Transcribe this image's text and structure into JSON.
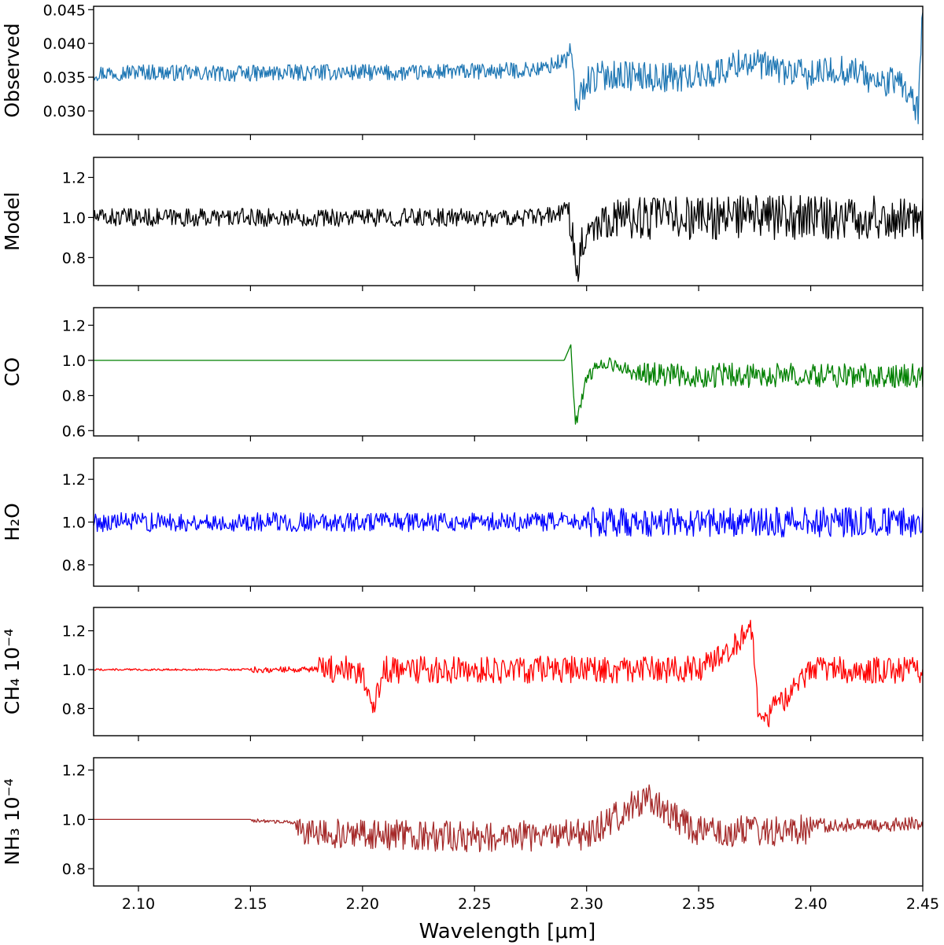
{
  "chart_data": {
    "xlabel": "Wavelength [μm]",
    "xlim": [
      2.08,
      2.45
    ],
    "xticks": [
      2.1,
      2.15,
      2.2,
      2.25,
      2.3,
      2.35,
      2.4,
      2.45
    ],
    "xtick_labels": [
      "2.10",
      "2.15",
      "2.20",
      "2.25",
      "2.30",
      "2.35",
      "2.40",
      "2.45"
    ],
    "panels": [
      {
        "type": "line",
        "key": "observed",
        "ylabel": "Observed",
        "color": "#1f77b4",
        "ylim": [
          0.0265,
          0.0455
        ],
        "yticks": [
          0.03,
          0.035,
          0.04,
          0.045
        ],
        "ytick_labels": [
          "0.030",
          "0.035",
          "0.040",
          "0.045"
        ],
        "x": [
          2.08,
          2.1,
          2.12,
          2.14,
          2.16,
          2.18,
          2.2,
          2.22,
          2.24,
          2.26,
          2.28,
          2.29,
          2.293,
          2.295,
          2.3,
          2.31,
          2.32,
          2.33,
          2.34,
          2.35,
          2.36,
          2.37,
          2.38,
          2.39,
          2.4,
          2.41,
          2.42,
          2.43,
          2.44,
          2.448,
          2.45
        ],
        "y": [
          0.0356,
          0.0358,
          0.0356,
          0.0355,
          0.0356,
          0.0357,
          0.0357,
          0.0356,
          0.0358,
          0.0359,
          0.0362,
          0.0375,
          0.039,
          0.0305,
          0.0345,
          0.0355,
          0.0352,
          0.035,
          0.035,
          0.0352,
          0.0358,
          0.0375,
          0.0365,
          0.0358,
          0.0352,
          0.036,
          0.036,
          0.034,
          0.0345,
          0.03,
          0.045
        ]
      },
      {
        "type": "line",
        "key": "model",
        "ylabel": "Model",
        "color": "#000000",
        "ylim": [
          0.66,
          1.3
        ],
        "yticks": [
          0.8,
          1.0,
          1.2
        ],
        "ytick_labels": [
          "0.8",
          "1.0",
          "1.2"
        ],
        "x": [
          2.08,
          2.15,
          2.2,
          2.25,
          2.28,
          2.292,
          2.294,
          2.295,
          2.3,
          2.31,
          2.35,
          2.4,
          2.45
        ],
        "y": [
          1.0,
          1.0,
          1.0,
          1.0,
          1.0,
          1.03,
          0.95,
          0.72,
          0.95,
          1.0,
          1.0,
          1.0,
          1.0
        ]
      },
      {
        "type": "line",
        "key": "co",
        "ylabel": "CO",
        "color": "#008000",
        "ylim": [
          0.57,
          1.3
        ],
        "yticks": [
          0.6,
          0.8,
          1.0,
          1.2
        ],
        "ytick_labels": [
          "0.6",
          "0.8",
          "1.0",
          "1.2"
        ],
        "x": [
          2.08,
          2.29,
          2.293,
          2.294,
          2.295,
          2.3,
          2.305,
          2.31,
          2.32,
          2.33,
          2.35,
          2.4,
          2.45
        ],
        "y": [
          1.0,
          1.0,
          1.09,
          0.85,
          0.64,
          0.93,
          0.98,
          1.0,
          0.98,
          0.96,
          0.95,
          0.95,
          0.95
        ]
      },
      {
        "type": "line",
        "key": "h2o",
        "ylabel": "H₂O",
        "color": "#0000ff",
        "ylim": [
          0.7,
          1.3
        ],
        "yticks": [
          0.8,
          1.0,
          1.2
        ],
        "ytick_labels": [
          "0.8",
          "1.0",
          "1.2"
        ],
        "x": [
          2.08,
          2.15,
          2.2,
          2.25,
          2.3,
          2.35,
          2.4,
          2.45
        ],
        "y": [
          1.0,
          1.0,
          1.0,
          1.0,
          1.0,
          1.0,
          1.0,
          1.0
        ]
      },
      {
        "type": "line",
        "key": "ch4",
        "ylabel": "CH₄ 10⁻⁴",
        "color": "#ff0000",
        "ylim": [
          0.66,
          1.32
        ],
        "yticks": [
          0.8,
          1.0,
          1.2
        ],
        "ytick_labels": [
          "0.8",
          "1.0",
          "1.2"
        ],
        "x": [
          2.08,
          2.15,
          2.18,
          2.2,
          2.204,
          2.21,
          2.25,
          2.3,
          2.32,
          2.33,
          2.35,
          2.374,
          2.377,
          2.4,
          2.45
        ],
        "y": [
          1.0,
          1.0,
          1.0,
          1.0,
          0.79,
          1.0,
          1.0,
          1.0,
          1.0,
          1.0,
          1.0,
          1.2,
          0.72,
          1.0,
          1.0
        ]
      },
      {
        "type": "line",
        "key": "nh3",
        "ylabel": "NH₃ 10⁻⁴",
        "color": "#a52a2a",
        "ylim": [
          0.73,
          1.25
        ],
        "yticks": [
          0.8,
          1.0,
          1.2
        ],
        "ytick_labels": [
          "0.8",
          "1.0",
          "1.2"
        ],
        "x": [
          2.08,
          2.15,
          2.17,
          2.2,
          2.25,
          2.3,
          2.327,
          2.35,
          2.4,
          2.43,
          2.45
        ],
        "y": [
          1.0,
          1.0,
          0.99,
          0.97,
          0.96,
          0.97,
          1.12,
          0.98,
          0.99,
          0.99,
          1.0
        ]
      }
    ]
  }
}
